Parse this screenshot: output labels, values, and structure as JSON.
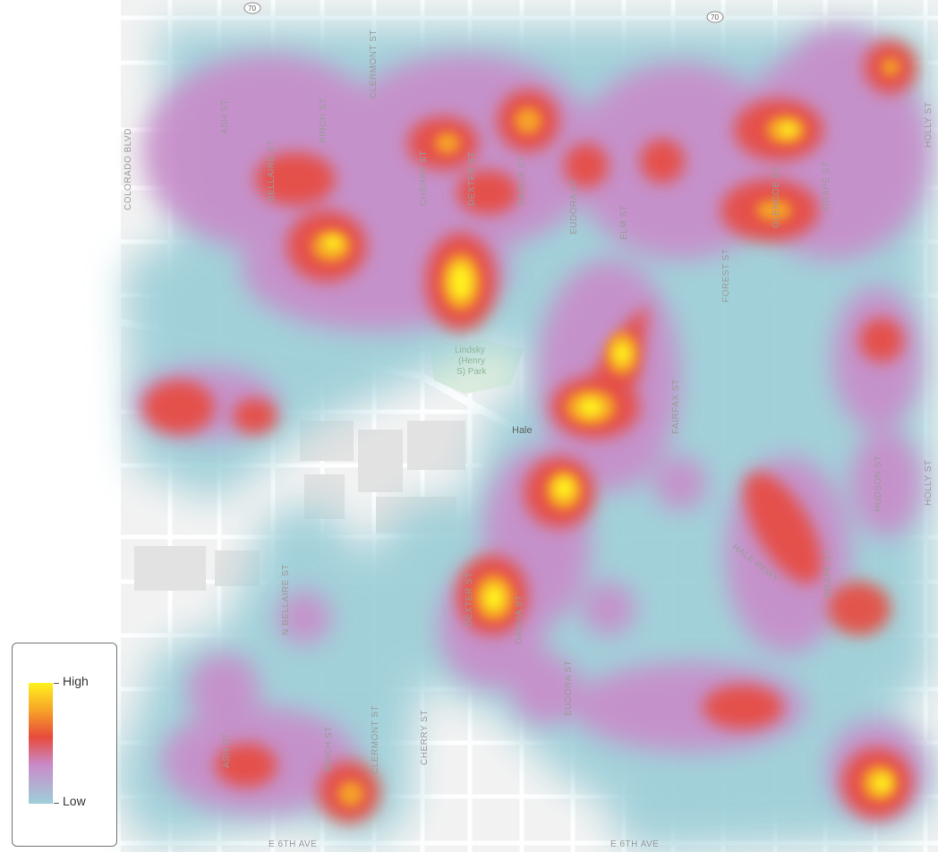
{
  "map": {
    "place_label": "Hale",
    "park_label_lines": [
      "Lindsky",
      "(Henry",
      "S) Park"
    ],
    "highway_shield": "70",
    "highway_shield_right": "70",
    "street_labels": {
      "colorado": "COLORADO BLVD",
      "ash_top": "ASH ST",
      "bellaire": "BELLAIRE ST",
      "birch_top": "BIRCH ST",
      "clermont_top": "CLERMONT ST",
      "cherry_top": "CHERRY ST",
      "dexter_top": "DEXTER ST",
      "dahlia_top": "DAHLIA ST",
      "eudora_top": "EUDORA ST",
      "elm": "ELM ST",
      "forest": "FOREST ST",
      "glencoe": "GLENCOE ST",
      "grape_top": "GRAPE ST",
      "holly_top": "HOLLY ST",
      "fairfax": "FAIRFAX ST",
      "hudson": "HUDSON ST",
      "holly_right": "HOLLY ST",
      "grape_bottom": "GRAPE ST",
      "hale_pkwy": "HALE PKWY",
      "n_bellaire": "N BELLAIRE ST",
      "dexter_bottom": "DEXTER ST",
      "dahlia_bottom": "DAHLIA ST",
      "eudora_bottom": "EUDORA ST",
      "ash_bottom": "ASH ST",
      "birch_bottom": "BIRCH ST",
      "clermont_bottom": "CLERMONT ST",
      "cherry_bottom": "CHERRY ST",
      "e6th_left": "E 6TH AVE",
      "e6th_right": "E 6TH AVE"
    }
  },
  "heatmap": {
    "colors": {
      "low": "#9ecfd8",
      "mid_low": "#c98bc9",
      "mid": "#e84a3c",
      "mid_high": "#f7a526",
      "high": "#fff21e"
    }
  },
  "legend": {
    "high_label": "High",
    "low_label": "Low"
  }
}
